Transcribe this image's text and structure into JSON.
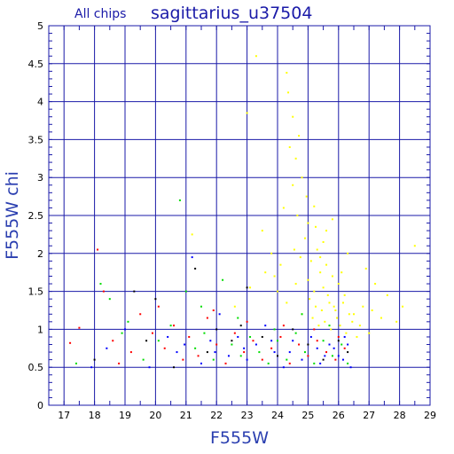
{
  "chart_data": {
    "type": "scatter",
    "title": "sagittarius_u37504",
    "subtitle": "All chips",
    "xlabel": "F555W",
    "ylabel": "F555W chi",
    "xlim": [
      16.5,
      29
    ],
    "ylim": [
      0,
      5
    ],
    "xticks": [
      "17",
      "18",
      "19",
      "20",
      "21",
      "22",
      "23",
      "24",
      "25",
      "26",
      "27",
      "28",
      "29"
    ],
    "yticks": [
      "0",
      "0.5",
      "1",
      "1.5",
      "2",
      "2.5",
      "3",
      "3.5",
      "4",
      "4.5",
      "5"
    ],
    "grid": true,
    "colors": {
      "frame": "#1a1aa8",
      "grid": "#1a1aa8",
      "yellow": "#ffff00",
      "red": "#ff0000",
      "green": "#00dd00",
      "blue": "#0000ff",
      "black": "#000000"
    },
    "series": [
      {
        "color": "#ffff00",
        "points": [
          [
            23.3,
            4.6
          ],
          [
            24.3,
            4.38
          ],
          [
            24.35,
            4.12
          ],
          [
            24.5,
            3.8
          ],
          [
            24.7,
            3.55
          ],
          [
            24.4,
            3.4
          ],
          [
            23.0,
            3.85
          ],
          [
            24.6,
            3.25
          ],
          [
            24.8,
            3.0
          ],
          [
            24.5,
            2.9
          ],
          [
            25.2,
            2.62
          ],
          [
            25.0,
            2.4
          ],
          [
            24.2,
            2.6
          ],
          [
            24.9,
            2.2
          ],
          [
            25.3,
            2.05
          ],
          [
            25.1,
            1.9
          ],
          [
            23.8,
            2.0
          ],
          [
            23.5,
            2.3
          ],
          [
            21.2,
            2.25
          ],
          [
            25.6,
            2.3
          ],
          [
            25.8,
            2.45
          ],
          [
            26.3,
            2.0
          ],
          [
            26.9,
            1.8
          ],
          [
            27.2,
            1.6
          ],
          [
            27.6,
            1.45
          ],
          [
            28.5,
            2.1
          ],
          [
            28.1,
            1.3
          ],
          [
            27.9,
            1.1
          ],
          [
            26.0,
            1.6
          ],
          [
            25.4,
            1.75
          ],
          [
            25.5,
            1.55
          ],
          [
            25.7,
            1.35
          ],
          [
            25.9,
            1.25
          ],
          [
            26.2,
            1.45
          ],
          [
            26.5,
            1.2
          ],
          [
            26.7,
            1.05
          ],
          [
            27.0,
            0.95
          ],
          [
            27.4,
            1.15
          ],
          [
            24.0,
            1.5
          ],
          [
            24.3,
            1.35
          ],
          [
            24.6,
            1.6
          ],
          [
            24.8,
            1.2
          ],
          [
            25.05,
            1.4
          ],
          [
            25.15,
            1.15
          ],
          [
            25.25,
            1.3
          ],
          [
            25.35,
            1.05
          ],
          [
            25.45,
            1.25
          ],
          [
            25.55,
            1.1
          ],
          [
            25.65,
            1.45
          ],
          [
            25.75,
            1.0
          ],
          [
            25.85,
            1.3
          ],
          [
            25.95,
            1.15
          ],
          [
            26.05,
            1.05
          ],
          [
            26.15,
            1.35
          ],
          [
            26.25,
            0.95
          ],
          [
            26.35,
            1.2
          ],
          [
            26.45,
            1.1
          ],
          [
            26.6,
            0.9
          ],
          [
            26.8,
            1.3
          ],
          [
            27.1,
            1.25
          ],
          [
            23.9,
            1.7
          ],
          [
            24.1,
            1.85
          ],
          [
            24.55,
            2.05
          ],
          [
            24.75,
            1.95
          ],
          [
            25.0,
            1.65
          ],
          [
            25.2,
            1.5
          ],
          [
            25.4,
            1.95
          ],
          [
            25.6,
            1.85
          ],
          [
            25.8,
            1.7
          ],
          [
            26.1,
            1.75
          ],
          [
            22.6,
            1.3
          ],
          [
            23.1,
            1.55
          ],
          [
            23.6,
            1.75
          ],
          [
            24.65,
            2.5
          ],
          [
            24.95,
            2.75
          ],
          [
            25.25,
            2.35
          ],
          [
            25.5,
            2.15
          ]
        ]
      },
      {
        "color": "#ff0000",
        "points": [
          [
            17.2,
            0.82
          ],
          [
            17.5,
            1.02
          ],
          [
            18.1,
            2.05
          ],
          [
            18.3,
            1.5
          ],
          [
            18.6,
            0.85
          ],
          [
            19.2,
            0.7
          ],
          [
            19.5,
            1.2
          ],
          [
            19.9,
            0.95
          ],
          [
            20.3,
            0.75
          ],
          [
            20.6,
            1.05
          ],
          [
            20.9,
            0.6
          ],
          [
            21.1,
            0.9
          ],
          [
            21.4,
            0.65
          ],
          [
            21.7,
            1.15
          ],
          [
            22.0,
            0.8
          ],
          [
            22.3,
            0.55
          ],
          [
            22.6,
            0.95
          ],
          [
            22.9,
            0.7
          ],
          [
            23.2,
            0.85
          ],
          [
            23.5,
            0.6
          ],
          [
            23.8,
            0.75
          ],
          [
            24.1,
            0.9
          ],
          [
            24.4,
            0.55
          ],
          [
            24.7,
            0.8
          ],
          [
            25.0,
            0.65
          ],
          [
            25.3,
            0.85
          ],
          [
            25.6,
            0.7
          ],
          [
            25.9,
            0.6
          ],
          [
            26.2,
            0.75
          ],
          [
            18.8,
            0.55
          ],
          [
            20.1,
            1.3
          ],
          [
            21.9,
            1.25
          ],
          [
            23.0,
            1.1
          ],
          [
            24.2,
            1.05
          ],
          [
            25.2,
            1.0
          ],
          [
            26.0,
            0.9
          ]
        ]
      },
      {
        "color": "#00dd00",
        "points": [
          [
            17.4,
            0.55
          ],
          [
            18.2,
            1.6
          ],
          [
            18.5,
            1.4
          ],
          [
            18.9,
            0.95
          ],
          [
            19.6,
            0.6
          ],
          [
            20.1,
            0.85
          ],
          [
            20.8,
            2.7
          ],
          [
            21.0,
            1.5
          ],
          [
            21.3,
            0.75
          ],
          [
            21.6,
            0.95
          ],
          [
            21.9,
            0.6
          ],
          [
            22.2,
            1.65
          ],
          [
            22.5,
            0.8
          ],
          [
            22.8,
            0.65
          ],
          [
            23.1,
            0.9
          ],
          [
            23.4,
            0.7
          ],
          [
            23.7,
            0.55
          ],
          [
            24.0,
            0.85
          ],
          [
            24.3,
            0.6
          ],
          [
            24.6,
            0.95
          ],
          [
            24.9,
            0.7
          ],
          [
            25.2,
            0.55
          ],
          [
            25.5,
            0.85
          ],
          [
            25.8,
            0.65
          ],
          [
            26.1,
            0.8
          ],
          [
            26.3,
            0.55
          ],
          [
            19.1,
            1.1
          ],
          [
            20.5,
            1.05
          ],
          [
            22.7,
            1.15
          ],
          [
            24.8,
            1.2
          ],
          [
            25.7,
            1.05
          ],
          [
            21.5,
            1.3
          ],
          [
            23.9,
            1.0
          ]
        ]
      },
      {
        "color": "#0000ff",
        "points": [
          [
            17.9,
            0.5
          ],
          [
            18.4,
            0.75
          ],
          [
            19.0,
            1.0
          ],
          [
            19.8,
            0.5
          ],
          [
            20.4,
            0.9
          ],
          [
            20.7,
            0.7
          ],
          [
            21.2,
            1.95
          ],
          [
            21.5,
            0.55
          ],
          [
            21.8,
            0.85
          ],
          [
            22.1,
            1.2
          ],
          [
            22.4,
            0.65
          ],
          [
            22.7,
            0.9
          ],
          [
            23.0,
            0.6
          ],
          [
            23.3,
            0.8
          ],
          [
            23.6,
            1.05
          ],
          [
            23.9,
            0.7
          ],
          [
            24.2,
            0.5
          ],
          [
            24.5,
            0.85
          ],
          [
            24.8,
            0.6
          ],
          [
            25.1,
            0.9
          ],
          [
            25.4,
            0.55
          ],
          [
            25.7,
            0.8
          ],
          [
            26.0,
            0.65
          ],
          [
            26.2,
            0.9
          ],
          [
            26.4,
            0.5
          ],
          [
            25.3,
            0.75
          ],
          [
            25.55,
            0.65
          ],
          [
            25.85,
            0.75
          ],
          [
            26.15,
            0.6
          ],
          [
            26.3,
            0.8
          ],
          [
            24.4,
            0.7
          ],
          [
            23.8,
            0.85
          ],
          [
            22.9,
            0.75
          ],
          [
            21.95,
            0.7
          ],
          [
            20.95,
            0.8
          ]
        ]
      },
      {
        "color": "#000000",
        "points": [
          [
            18.0,
            0.6
          ],
          [
            19.3,
            1.5
          ],
          [
            20.0,
            1.4
          ],
          [
            20.6,
            0.5
          ],
          [
            21.3,
            1.8
          ],
          [
            21.7,
            0.7
          ],
          [
            22.0,
            1.0
          ],
          [
            22.5,
            0.85
          ],
          [
            23.0,
            1.55
          ],
          [
            23.5,
            0.9
          ],
          [
            24.0,
            0.65
          ],
          [
            24.5,
            1.0
          ],
          [
            25.0,
            0.8
          ],
          [
            25.5,
            0.6
          ],
          [
            26.0,
            0.85
          ],
          [
            26.3,
            0.7
          ],
          [
            19.7,
            0.85
          ],
          [
            22.8,
            1.05
          ]
        ]
      }
    ]
  }
}
